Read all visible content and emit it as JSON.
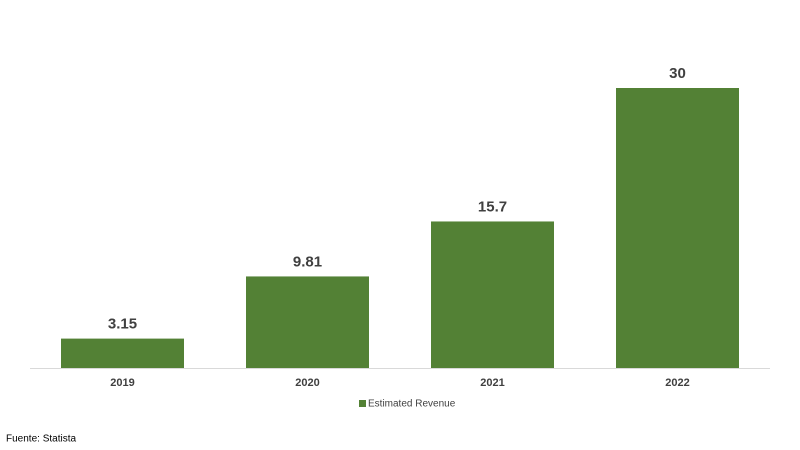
{
  "chart_data": {
    "type": "bar",
    "categories": [
      "2019",
      "2020",
      "2021",
      "2022"
    ],
    "series": [
      {
        "name": "Estimated Revenue",
        "color": "#538135",
        "values": [
          3.15,
          9.81,
          15.7,
          30
        ]
      }
    ],
    "source": "Fuente: Statista"
  }
}
